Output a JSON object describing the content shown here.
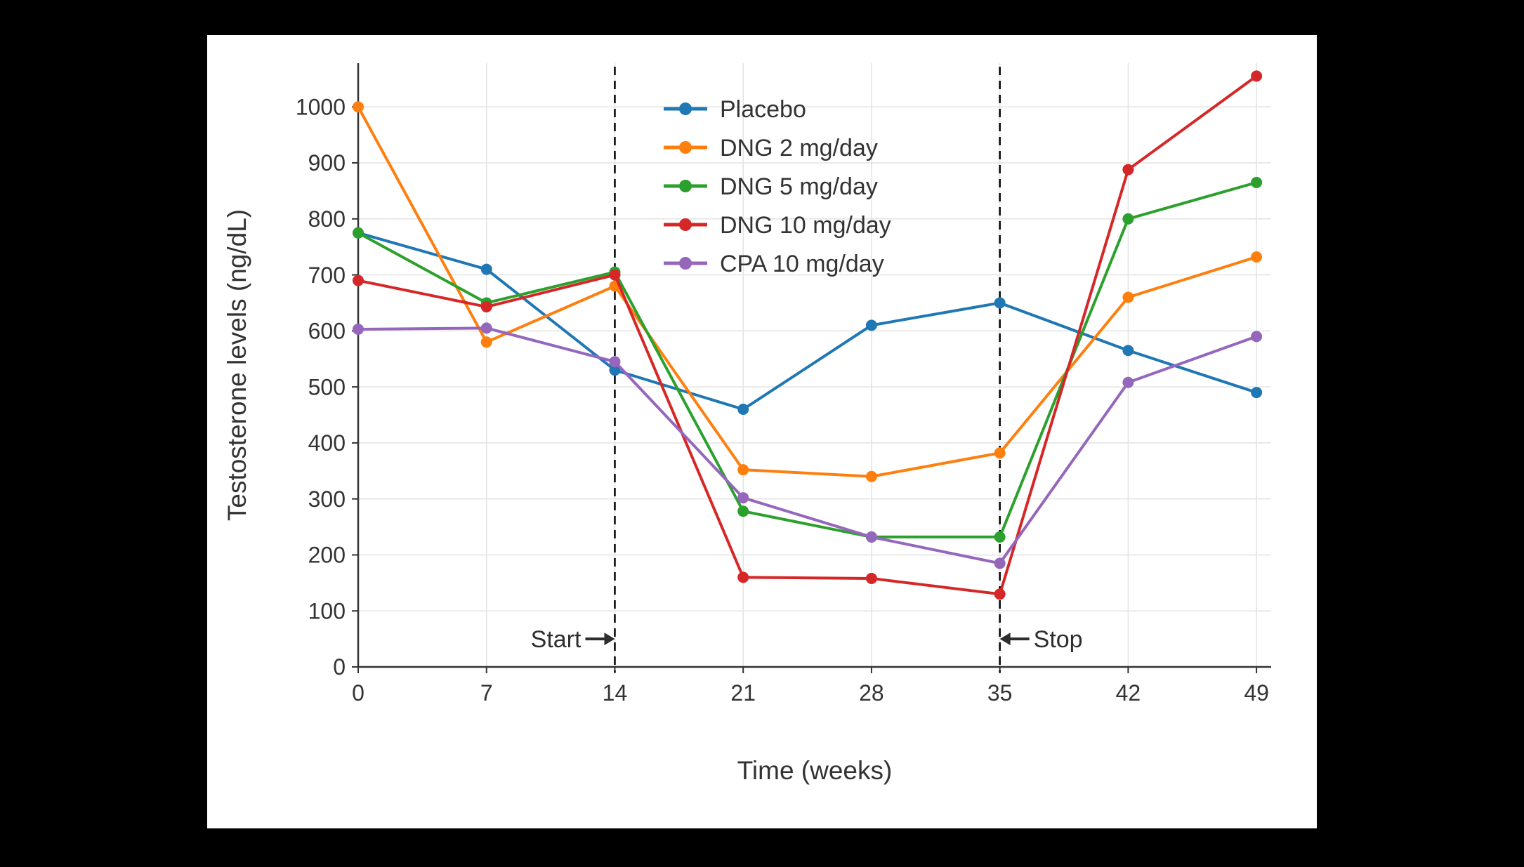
{
  "page": {
    "background": "#000000",
    "panel_background": "#ffffff",
    "grid_color": "#e3e3e3",
    "axis_color": "#333333",
    "text_color": "#333333"
  },
  "chart_data": {
    "type": "line",
    "title": "",
    "xlabel": "Time (weeks)",
    "ylabel": "Testosterone levels (ng/dL)",
    "x": [
      0,
      7,
      14,
      21,
      28,
      35,
      42,
      49
    ],
    "x_ticks": [
      0,
      7,
      14,
      21,
      28,
      35,
      42,
      49
    ],
    "y_ticks": [
      0,
      100,
      200,
      300,
      400,
      500,
      600,
      700,
      800,
      900,
      1000
    ],
    "xlim": [
      0,
      49.8
    ],
    "ylim": [
      0,
      1078
    ],
    "grid": true,
    "legend_position": "top-center-inside",
    "series": [
      {
        "name": "Placebo",
        "color": "#1f77b4",
        "values": [
          775,
          710,
          530,
          460,
          610,
          650,
          565,
          490
        ]
      },
      {
        "name": "DNG 2 mg/day",
        "color": "#ff7f0e",
        "values": [
          1000,
          580,
          680,
          352,
          340,
          382,
          660,
          732
        ]
      },
      {
        "name": "DNG 5 mg/day",
        "color": "#2ca02c",
        "values": [
          775,
          650,
          705,
          278,
          232,
          232,
          800,
          865
        ]
      },
      {
        "name": "DNG 10 mg/day",
        "color": "#d62728",
        "values": [
          690,
          643,
          700,
          160,
          158,
          130,
          888,
          1055
        ]
      },
      {
        "name": "CPA 10 mg/day",
        "color": "#9467bd",
        "values": [
          603,
          605,
          545,
          302,
          232,
          185,
          508,
          590
        ]
      }
    ],
    "vlines": [
      {
        "x": 14,
        "style": "dashed",
        "color": "#000000"
      },
      {
        "x": 35,
        "style": "dashed",
        "color": "#000000"
      }
    ],
    "annotations": [
      {
        "text": "Start",
        "x": 14,
        "y": 50,
        "arrow": "right"
      },
      {
        "text": "Stop",
        "x": 35,
        "y": 50,
        "arrow": "left"
      }
    ]
  }
}
